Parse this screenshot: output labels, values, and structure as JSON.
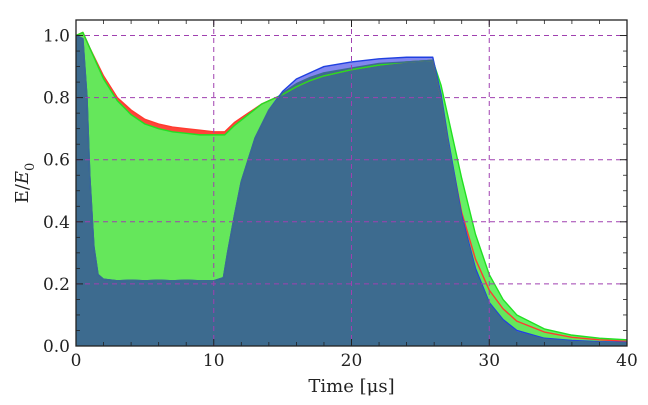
{
  "chart_data": {
    "type": "area",
    "xlabel": "Time [μs]",
    "ylabel": "E/E₀",
    "ylabel_parts": {
      "main": "E/",
      "var": "E",
      "sub": "0"
    },
    "xlim": [
      0,
      40
    ],
    "ylim": [
      0,
      1.05
    ],
    "xticks": [
      0,
      10,
      20,
      30,
      40
    ],
    "xtick_labels": [
      "0",
      "10",
      "20",
      "30",
      "40"
    ],
    "yticks": [
      0.0,
      0.2,
      0.4,
      0.6,
      0.8,
      1.0
    ],
    "ytick_labels": [
      "0.0",
      "0.2",
      "0.4",
      "0.6",
      "0.8",
      "1.0"
    ],
    "grid": true,
    "grid_color": "#a040b0",
    "series": [
      {
        "color": "#ff3b30",
        "fill": "#ff3b30",
        "x": [
          0,
          0.5,
          1,
          2,
          3,
          4,
          5,
          6,
          7,
          8,
          9,
          10,
          10.8,
          11.5,
          12.5,
          13.5,
          14.5,
          15,
          16,
          17,
          18,
          20,
          22,
          24,
          25.9,
          26.5,
          27,
          28,
          29,
          30,
          31,
          32,
          34,
          36,
          38,
          40
        ],
        "y": [
          1.0,
          1.01,
          0.96,
          0.87,
          0.8,
          0.76,
          0.73,
          0.715,
          0.705,
          0.7,
          0.695,
          0.69,
          0.69,
          0.72,
          0.75,
          0.78,
          0.8,
          0.81,
          0.835,
          0.855,
          0.87,
          0.89,
          0.905,
          0.915,
          0.92,
          0.8,
          0.66,
          0.43,
          0.28,
          0.18,
          0.12,
          0.08,
          0.045,
          0.028,
          0.02,
          0.015
        ]
      },
      {
        "color": "#22e022",
        "fill": "#5df05d",
        "x": [
          0,
          0.5,
          1,
          2,
          3,
          4,
          5,
          6,
          7,
          8,
          9,
          10,
          10.8,
          11.5,
          12.5,
          13.5,
          14.5,
          15,
          16,
          17,
          18,
          20,
          22,
          24,
          25.9,
          26.5,
          27,
          28,
          29,
          30,
          31,
          32,
          34,
          36,
          38,
          40
        ],
        "y": [
          1.0,
          1.01,
          0.96,
          0.86,
          0.79,
          0.745,
          0.715,
          0.7,
          0.69,
          0.685,
          0.68,
          0.68,
          0.68,
          0.71,
          0.745,
          0.78,
          0.8,
          0.81,
          0.835,
          0.855,
          0.87,
          0.89,
          0.905,
          0.915,
          0.92,
          0.84,
          0.74,
          0.54,
          0.36,
          0.23,
          0.15,
          0.1,
          0.055,
          0.035,
          0.025,
          0.02
        ]
      },
      {
        "color": "#2040e0",
        "fill": "#7a80ee",
        "x": [
          0,
          0.5,
          0.8,
          1,
          1.3,
          1.6,
          2,
          3,
          4,
          5,
          6,
          7,
          8,
          9,
          10,
          10.7,
          11,
          11.5,
          12,
          13,
          14,
          15,
          16,
          17,
          18,
          20,
          22,
          24,
          25.9,
          26.5,
          27,
          28,
          29,
          30,
          31,
          32,
          34,
          36,
          38,
          40
        ],
        "y": [
          1.0,
          0.99,
          0.8,
          0.55,
          0.32,
          0.23,
          0.215,
          0.21,
          0.212,
          0.21,
          0.212,
          0.21,
          0.212,
          0.21,
          0.21,
          0.22,
          0.3,
          0.42,
          0.53,
          0.67,
          0.76,
          0.82,
          0.86,
          0.88,
          0.9,
          0.915,
          0.925,
          0.93,
          0.93,
          0.81,
          0.67,
          0.42,
          0.25,
          0.14,
          0.085,
          0.05,
          0.025,
          0.018,
          0.014,
          0.012
        ]
      },
      {
        "color": "#3d6b8f",
        "fill": "#3d6b8f",
        "x": [
          0,
          0.5,
          0.8,
          1,
          1.3,
          1.6,
          2,
          3,
          4,
          5,
          6,
          7,
          8,
          9,
          10,
          10.7,
          11,
          11.5,
          12,
          13,
          14,
          15,
          16,
          17,
          18,
          20,
          22,
          24,
          25.9,
          26.5,
          27,
          28,
          29,
          30,
          31,
          32,
          34,
          36,
          38,
          40
        ],
        "y": [
          1.0,
          0.99,
          0.8,
          0.55,
          0.32,
          0.23,
          0.215,
          0.21,
          0.212,
          0.21,
          0.212,
          0.21,
          0.212,
          0.21,
          0.21,
          0.22,
          0.3,
          0.42,
          0.53,
          0.67,
          0.76,
          0.815,
          0.845,
          0.865,
          0.88,
          0.895,
          0.91,
          0.915,
          0.92,
          0.8,
          0.66,
          0.41,
          0.24,
          0.135,
          0.08,
          0.045,
          0.022,
          0.015,
          0.012,
          0.01
        ]
      }
    ]
  }
}
